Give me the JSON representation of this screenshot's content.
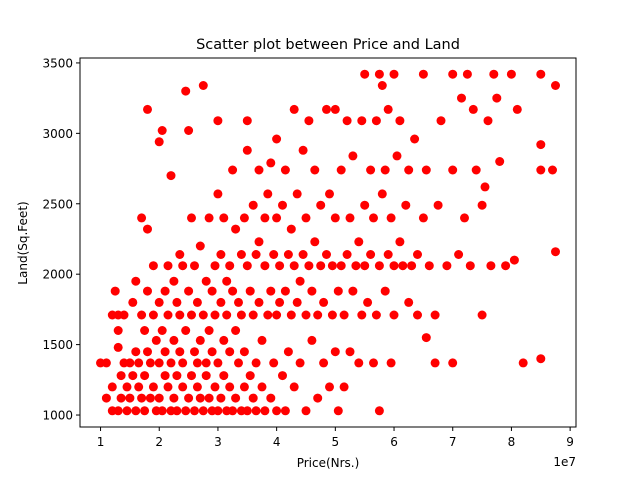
{
  "chart_data": {
    "type": "scatter",
    "title": "Scatter plot between Price and Land",
    "xlabel": "Price(Nrs.)",
    "ylabel": "Land(Sq.Feet)",
    "x_offset_text": "1e7",
    "xlim": [
      0.65,
      9.1
    ],
    "ylim": [
      915,
      3535
    ],
    "x_ticks": [
      1,
      2,
      3,
      4,
      5,
      6,
      7,
      8,
      9
    ],
    "y_ticks": [
      1000,
      1500,
      2000,
      2500,
      3000,
      3500
    ],
    "grid": false,
    "marker_color": "#ff0000",
    "points": [
      [
        1.0,
        1370
      ],
      [
        1.1,
        1370
      ],
      [
        1.1,
        1120
      ],
      [
        1.2,
        1030
      ],
      [
        1.2,
        1200
      ],
      [
        1.2,
        1710
      ],
      [
        1.25,
        1880
      ],
      [
        1.3,
        1600
      ],
      [
        1.3,
        1480
      ],
      [
        1.3,
        1710
      ],
      [
        1.3,
        1030
      ],
      [
        1.35,
        1280
      ],
      [
        1.35,
        1120
      ],
      [
        1.4,
        1370
      ],
      [
        1.4,
        1710
      ],
      [
        1.45,
        1200
      ],
      [
        1.45,
        1030
      ],
      [
        1.5,
        1370
      ],
      [
        1.5,
        1120
      ],
      [
        1.55,
        1800
      ],
      [
        1.55,
        1280
      ],
      [
        1.6,
        1030
      ],
      [
        1.6,
        1450
      ],
      [
        1.6,
        1950
      ],
      [
        1.65,
        1200
      ],
      [
        1.65,
        1370
      ],
      [
        1.7,
        1120
      ],
      [
        1.7,
        1710
      ],
      [
        1.7,
        2400
      ],
      [
        1.75,
        1030
      ],
      [
        1.75,
        1600
      ],
      [
        1.75,
        1280
      ],
      [
        1.8,
        1450
      ],
      [
        1.8,
        2320
      ],
      [
        1.8,
        1880
      ],
      [
        1.8,
        3170
      ],
      [
        1.85,
        1370
      ],
      [
        1.85,
        1120
      ],
      [
        1.9,
        1710
      ],
      [
        1.9,
        2060
      ],
      [
        1.9,
        1200
      ],
      [
        1.95,
        1030
      ],
      [
        1.95,
        1530
      ],
      [
        2.0,
        1370
      ],
      [
        2.0,
        1800
      ],
      [
        2.0,
        2940
      ],
      [
        2.0,
        1120
      ],
      [
        2.05,
        1030
      ],
      [
        2.05,
        3020
      ],
      [
        2.05,
        1600
      ],
      [
        2.1,
        1280
      ],
      [
        2.1,
        1880
      ],
      [
        2.1,
        1450
      ],
      [
        2.15,
        1200
      ],
      [
        2.15,
        1710
      ],
      [
        2.15,
        2060
      ],
      [
        2.2,
        1030
      ],
      [
        2.2,
        1370
      ],
      [
        2.2,
        2700
      ],
      [
        2.25,
        1120
      ],
      [
        2.25,
        1530
      ],
      [
        2.25,
        1950
      ],
      [
        2.3,
        1280
      ],
      [
        2.3,
        1800
      ],
      [
        2.3,
        1030
      ],
      [
        2.35,
        1450
      ],
      [
        2.35,
        1710
      ],
      [
        2.35,
        2140
      ],
      [
        2.4,
        1200
      ],
      [
        2.4,
        1370
      ],
      [
        2.4,
        2060
      ],
      [
        2.45,
        1030
      ],
      [
        2.45,
        1600
      ],
      [
        2.45,
        3300
      ],
      [
        2.5,
        1120
      ],
      [
        2.5,
        1880
      ],
      [
        2.5,
        3020
      ],
      [
        2.55,
        1280
      ],
      [
        2.55,
        1710
      ],
      [
        2.55,
        2400
      ],
      [
        2.6,
        1030
      ],
      [
        2.6,
        1450
      ],
      [
        2.6,
        2060
      ],
      [
        2.65,
        1200
      ],
      [
        2.65,
        1800
      ],
      [
        2.65,
        1370
      ],
      [
        2.7,
        1120
      ],
      [
        2.7,
        1530
      ],
      [
        2.7,
        2200
      ],
      [
        2.75,
        1030
      ],
      [
        2.75,
        1710
      ],
      [
        2.75,
        3340
      ],
      [
        2.8,
        1280
      ],
      [
        2.8,
        1950
      ],
      [
        2.8,
        1370
      ],
      [
        2.85,
        1120
      ],
      [
        2.85,
        1600
      ],
      [
        2.85,
        2400
      ],
      [
        2.9,
        1030
      ],
      [
        2.9,
        1880
      ],
      [
        2.9,
        1450
      ],
      [
        2.95,
        1200
      ],
      [
        2.95,
        2060
      ],
      [
        2.95,
        1710
      ],
      [
        3.0,
        1030
      ],
      [
        3.0,
        1370
      ],
      [
        3.0,
        2570
      ],
      [
        3.0,
        3090
      ],
      [
        3.05,
        1120
      ],
      [
        3.05,
        1800
      ],
      [
        3.05,
        2140
      ],
      [
        3.1,
        1280
      ],
      [
        3.1,
        1530
      ],
      [
        3.1,
        2400
      ],
      [
        3.15,
        1030
      ],
      [
        3.15,
        1710
      ],
      [
        3.15,
        1950
      ],
      [
        3.2,
        1200
      ],
      [
        3.2,
        1450
      ],
      [
        3.2,
        2060
      ],
      [
        3.25,
        1030
      ],
      [
        3.25,
        1880
      ],
      [
        3.25,
        2740
      ],
      [
        3.3,
        1120
      ],
      [
        3.3,
        1600
      ],
      [
        3.3,
        2320
      ],
      [
        3.35,
        1370
      ],
      [
        3.35,
        1800
      ],
      [
        3.4,
        1030
      ],
      [
        3.4,
        2140
      ],
      [
        3.4,
        1710
      ],
      [
        3.45,
        1200
      ],
      [
        3.45,
        2400
      ],
      [
        3.45,
        1450
      ],
      [
        3.5,
        1030
      ],
      [
        3.5,
        2060
      ],
      [
        3.5,
        2880
      ],
      [
        3.5,
        3090
      ],
      [
        3.55,
        1280
      ],
      [
        3.55,
        1880
      ],
      [
        3.6,
        1120
      ],
      [
        3.6,
        1710
      ],
      [
        3.6,
        2490
      ],
      [
        3.65,
        1030
      ],
      [
        3.65,
        2140
      ],
      [
        3.65,
        1370
      ],
      [
        3.7,
        1800
      ],
      [
        3.7,
        2230
      ],
      [
        3.7,
        2740
      ],
      [
        3.75,
        1200
      ],
      [
        3.75,
        1530
      ],
      [
        3.8,
        1030
      ],
      [
        3.8,
        2060
      ],
      [
        3.8,
        2400
      ],
      [
        3.85,
        1710
      ],
      [
        3.85,
        2570
      ],
      [
        3.9,
        1120
      ],
      [
        3.9,
        1880
      ],
      [
        3.9,
        2790
      ],
      [
        3.95,
        1370
      ],
      [
        3.95,
        2140
      ],
      [
        4.0,
        1030
      ],
      [
        4.0,
        1710
      ],
      [
        4.0,
        2400
      ],
      [
        4.0,
        2960
      ],
      [
        4.05,
        1800
      ],
      [
        4.05,
        2060
      ],
      [
        4.1,
        1280
      ],
      [
        4.1,
        2490
      ],
      [
        4.15,
        1030
      ],
      [
        4.15,
        1880
      ],
      [
        4.15,
        2740
      ],
      [
        4.2,
        1450
      ],
      [
        4.2,
        2140
      ],
      [
        4.25,
        1710
      ],
      [
        4.25,
        2320
      ],
      [
        4.3,
        1200
      ],
      [
        4.3,
        2060
      ],
      [
        4.3,
        3170
      ],
      [
        4.35,
        1800
      ],
      [
        4.35,
        2570
      ],
      [
        4.4,
        1370
      ],
      [
        4.4,
        1950
      ],
      [
        4.45,
        2140
      ],
      [
        4.45,
        2880
      ],
      [
        4.5,
        1030
      ],
      [
        4.5,
        1710
      ],
      [
        4.5,
        2400
      ],
      [
        4.55,
        2060
      ],
      [
        4.55,
        3090
      ],
      [
        4.6,
        1530
      ],
      [
        4.6,
        1880
      ],
      [
        4.65,
        2230
      ],
      [
        4.65,
        2740
      ],
      [
        4.7,
        1120
      ],
      [
        4.7,
        1710
      ],
      [
        4.75,
        2060
      ],
      [
        4.75,
        2490
      ],
      [
        4.8,
        1370
      ],
      [
        4.8,
        1800
      ],
      [
        4.85,
        2140
      ],
      [
        4.85,
        3170
      ],
      [
        4.9,
        1200
      ],
      [
        4.9,
        2570
      ],
      [
        4.95,
        1710
      ],
      [
        4.95,
        2060
      ],
      [
        5.0,
        1450
      ],
      [
        5.0,
        2400
      ],
      [
        5.0,
        3170
      ],
      [
        5.05,
        1030
      ],
      [
        5.05,
        1880
      ],
      [
        5.1,
        2060
      ],
      [
        5.1,
        2740
      ],
      [
        5.15,
        1200
      ],
      [
        5.15,
        1710
      ],
      [
        5.2,
        2140
      ],
      [
        5.2,
        3090
      ],
      [
        5.25,
        1450
      ],
      [
        5.25,
        2400
      ],
      [
        5.3,
        1880
      ],
      [
        5.3,
        2840
      ],
      [
        5.35,
        2060
      ],
      [
        5.4,
        1370
      ],
      [
        5.4,
        2230
      ],
      [
        5.45,
        1710
      ],
      [
        5.45,
        3090
      ],
      [
        5.5,
        2060
      ],
      [
        5.5,
        2490
      ],
      [
        5.5,
        3420
      ],
      [
        5.55,
        1800
      ],
      [
        5.6,
        2140
      ],
      [
        5.6,
        2740
      ],
      [
        5.65,
        1370
      ],
      [
        5.65,
        2400
      ],
      [
        5.7,
        1710
      ],
      [
        5.7,
        3090
      ],
      [
        5.75,
        1030
      ],
      [
        5.75,
        2060
      ],
      [
        5.75,
        3420
      ],
      [
        5.8,
        2570
      ],
      [
        5.8,
        3340
      ],
      [
        5.85,
        1880
      ],
      [
        5.85,
        2740
      ],
      [
        5.9,
        2140
      ],
      [
        5.9,
        3170
      ],
      [
        5.95,
        1370
      ],
      [
        5.95,
        2400
      ],
      [
        6.0,
        1710
      ],
      [
        6.0,
        2060
      ],
      [
        6.0,
        3420
      ],
      [
        6.05,
        2840
      ],
      [
        6.1,
        2230
      ],
      [
        6.1,
        3090
      ],
      [
        6.15,
        2060
      ],
      [
        6.2,
        2490
      ],
      [
        6.25,
        1800
      ],
      [
        6.25,
        2740
      ],
      [
        6.3,
        2060
      ],
      [
        6.35,
        2960
      ],
      [
        6.4,
        1710
      ],
      [
        6.4,
        2140
      ],
      [
        6.5,
        2400
      ],
      [
        6.5,
        3420
      ],
      [
        6.55,
        1550
      ],
      [
        6.55,
        2740
      ],
      [
        6.6,
        2060
      ],
      [
        6.7,
        1370
      ],
      [
        6.7,
        1710
      ],
      [
        6.75,
        2490
      ],
      [
        6.8,
        3090
      ],
      [
        6.9,
        2060
      ],
      [
        7.0,
        1370
      ],
      [
        7.0,
        2740
      ],
      [
        7.0,
        3420
      ],
      [
        7.1,
        2140
      ],
      [
        7.15,
        3250
      ],
      [
        7.2,
        2400
      ],
      [
        7.25,
        3420
      ],
      [
        7.3,
        2060
      ],
      [
        7.35,
        3170
      ],
      [
        7.4,
        2740
      ],
      [
        7.5,
        1710
      ],
      [
        7.5,
        2490
      ],
      [
        7.55,
        2620
      ],
      [
        7.6,
        3090
      ],
      [
        7.65,
        2060
      ],
      [
        7.7,
        3420
      ],
      [
        7.75,
        3250
      ],
      [
        7.8,
        2800
      ],
      [
        7.9,
        2060
      ],
      [
        8.0,
        3420
      ],
      [
        8.05,
        2100
      ],
      [
        8.1,
        3170
      ],
      [
        8.2,
        1370
      ],
      [
        8.5,
        1400
      ],
      [
        8.5,
        2740
      ],
      [
        8.5,
        2920
      ],
      [
        8.5,
        3420
      ],
      [
        8.7,
        2740
      ],
      [
        8.75,
        2160
      ],
      [
        8.75,
        3340
      ]
    ]
  }
}
